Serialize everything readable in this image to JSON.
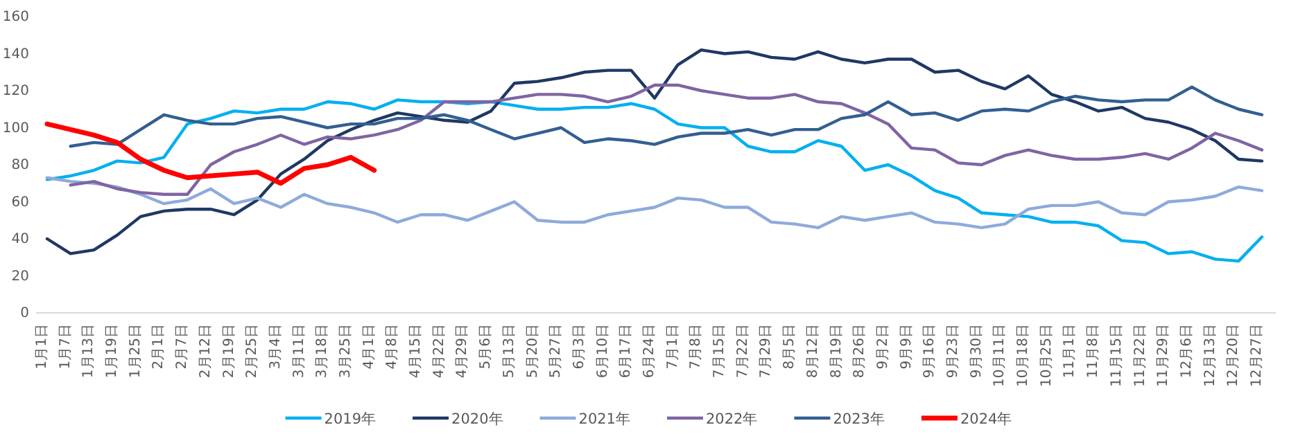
{
  "chart_data": {
    "type": "line",
    "categories": [
      "1月1日",
      "1月7日",
      "1月13日",
      "1月19日",
      "1月25日",
      "2月1日",
      "2月7日",
      "2月12日",
      "2月19日",
      "2月25日",
      "3月4日",
      "3月11日",
      "3月18日",
      "3月25日",
      "4月1日",
      "4月8日",
      "4月15日",
      "4月22日",
      "4月29日",
      "5月6日",
      "5月13日",
      "5月20日",
      "5月27日",
      "6月3日",
      "6月10日",
      "6月17日",
      "6月24日",
      "7月1日",
      "7月8日",
      "7月15日",
      "7月22日",
      "7月29日",
      "8月5日",
      "8月12日",
      "8月19日",
      "8月26日",
      "9月2日",
      "9月9日",
      "9月16日",
      "9月23日",
      "9月30日",
      "10月11日",
      "10月18日",
      "10月25日",
      "11月1日",
      "11月8日",
      "11月15日",
      "11月22日",
      "11月29日",
      "12月6日",
      "12月13日",
      "12月20日",
      "12月27日"
    ],
    "series": [
      {
        "name": "2019年",
        "color": "#00b0f0",
        "values": [
          72,
          74,
          77,
          82,
          81,
          84,
          102,
          105,
          109,
          108,
          110,
          110,
          114,
          113,
          110,
          115,
          114,
          114,
          113,
          114,
          112,
          110,
          110,
          111,
          111,
          113,
          110,
          102,
          100,
          100,
          90,
          87,
          87,
          93,
          90,
          77,
          80,
          74,
          66,
          62,
          54,
          53,
          52,
          49,
          49,
          47,
          39,
          38,
          32,
          33,
          29,
          28,
          41
        ]
      },
      {
        "name": "2020年",
        "color": "#1f3864",
        "values": [
          40,
          32,
          34,
          42,
          52,
          55,
          56,
          56,
          53,
          61,
          75,
          83,
          93,
          99,
          104,
          108,
          106,
          104,
          103,
          109,
          124,
          125,
          127,
          130,
          131,
          131,
          116,
          134,
          142,
          140,
          141,
          138,
          137,
          141,
          137,
          135,
          137,
          137,
          130,
          131,
          125,
          121,
          128,
          118,
          114,
          109,
          111,
          105,
          103,
          99,
          93,
          83,
          82
        ]
      },
      {
        "name": "2021年",
        "color": "#8eaadb",
        "values": [
          73,
          71,
          70,
          68,
          64,
          59,
          61,
          67,
          59,
          62,
          57,
          64,
          59,
          57,
          54,
          49,
          53,
          53,
          50,
          55,
          60,
          50,
          49,
          49,
          53,
          55,
          57,
          62,
          61,
          57,
          57,
          49,
          48,
          46,
          52,
          50,
          52,
          54,
          49,
          48,
          46,
          48,
          56,
          58,
          58,
          60,
          54,
          53,
          60,
          61,
          63,
          68,
          66
        ]
      },
      {
        "name": "2022年",
        "color": "#8064a2",
        "values": [
          null,
          69,
          71,
          67,
          65,
          64,
          64,
          80,
          87,
          91,
          96,
          91,
          95,
          94,
          96,
          99,
          104,
          114,
          114,
          114,
          116,
          118,
          118,
          117,
          114,
          117,
          123,
          123,
          120,
          118,
          116,
          116,
          118,
          114,
          113,
          108,
          102,
          89,
          88,
          81,
          80,
          85,
          88,
          85,
          83,
          83,
          84,
          86,
          83,
          89,
          97,
          93,
          88
        ]
      },
      {
        "name": "2023年",
        "color": "#335f91",
        "values": [
          null,
          90,
          92,
          91,
          99,
          107,
          104,
          102,
          102,
          105,
          106,
          103,
          100,
          102,
          102,
          105,
          105,
          107,
          104,
          99,
          94,
          97,
          100,
          92,
          94,
          93,
          91,
          95,
          97,
          97,
          99,
          96,
          99,
          99,
          105,
          107,
          114,
          107,
          108,
          104,
          109,
          110,
          109,
          114,
          117,
          115,
          114,
          115,
          115,
          122,
          115,
          110,
          107
        ]
      },
      {
        "name": "2024年",
        "color": "#ff0000",
        "values": [
          102,
          99,
          96,
          92,
          83,
          77,
          73,
          74,
          75,
          76,
          70,
          78,
          80,
          84,
          77,
          null,
          null,
          null,
          null,
          null,
          null,
          null,
          null,
          null,
          null,
          null,
          null,
          null,
          null,
          null,
          null,
          null,
          null,
          null,
          null,
          null,
          null,
          null,
          null,
          null,
          null,
          null,
          null,
          null,
          null,
          null,
          null,
          null,
          null,
          null,
          null,
          null,
          null
        ]
      }
    ],
    "ylim": [
      0,
      160
    ],
    "yticks": [
      0,
      20,
      40,
      60,
      80,
      100,
      120,
      140,
      160
    ],
    "legend": "bottom",
    "marker": "none",
    "line_style": "solid"
  }
}
